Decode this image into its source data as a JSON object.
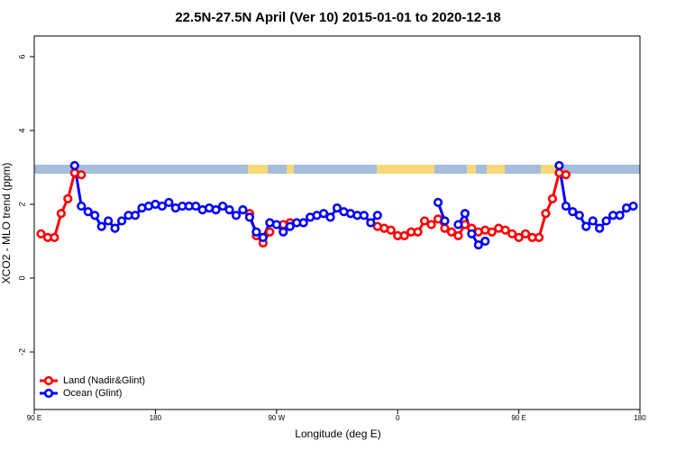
{
  "chart_data": {
    "type": "line",
    "title": "22.5N-27.5N April (Ver 10)   2015-01-01 to 2020-12-18",
    "x_label": "Longitude (deg E)",
    "y_label": "XCO2 - MLO trend (ppm)",
    "x": [
      95,
      100,
      105,
      110,
      115,
      120,
      125,
      130,
      135,
      140,
      145,
      150,
      155,
      160,
      165,
      170,
      175,
      180,
      185,
      190,
      195,
      200,
      205,
      210,
      215,
      220,
      225,
      230,
      235,
      240,
      245,
      250,
      255,
      260,
      265,
      270,
      275,
      280,
      285,
      290,
      295,
      300,
      305,
      310,
      315,
      320,
      325,
      330,
      335,
      340,
      345,
      350,
      355,
      360,
      365,
      370,
      375,
      380,
      385,
      390,
      395,
      400,
      405,
      410,
      415,
      420,
      425,
      430,
      435,
      440,
      445,
      450,
      455,
      460,
      465,
      470,
      475,
      480,
      485,
      490,
      495,
      500,
      505,
      510,
      515,
      520,
      525,
      530,
      535
    ],
    "series": [
      {
        "name": "Land (Nadir&Glint)",
        "color": "#ff0000",
        "values": [
          1.2,
          1.1,
          1.1,
          1.75,
          2.15,
          2.85,
          2.8,
          null,
          null,
          null,
          null,
          null,
          null,
          null,
          null,
          null,
          null,
          null,
          null,
          null,
          null,
          null,
          null,
          null,
          null,
          null,
          null,
          null,
          null,
          null,
          null,
          1.75,
          1.15,
          0.95,
          1.25,
          null,
          1.45,
          1.5,
          null,
          null,
          null,
          null,
          null,
          null,
          null,
          null,
          null,
          null,
          null,
          null,
          1.4,
          1.35,
          1.3,
          1.15,
          1.15,
          1.25,
          1.25,
          1.55,
          1.45,
          1.6,
          1.35,
          1.25,
          1.15,
          1.45,
          1.35,
          1.25,
          1.3,
          1.25,
          1.35,
          1.3,
          1.2,
          1.1,
          1.2,
          1.1,
          1.1,
          1.75,
          2.15,
          2.85,
          2.8,
          null,
          null,
          null,
          null,
          null,
          null,
          null,
          null,
          null,
          null
        ]
      },
      {
        "name": "Ocean (Glint)",
        "color": "#0000ff",
        "values": [
          null,
          null,
          null,
          null,
          null,
          3.05,
          1.95,
          1.8,
          1.7,
          1.4,
          1.55,
          1.35,
          1.55,
          1.7,
          1.7,
          1.9,
          1.95,
          2.0,
          1.95,
          2.05,
          1.9,
          1.95,
          1.95,
          1.95,
          1.85,
          1.9,
          1.85,
          1.95,
          1.85,
          1.7,
          1.85,
          1.65,
          1.25,
          1.1,
          1.5,
          1.45,
          1.25,
          1.4,
          1.5,
          1.5,
          1.65,
          1.7,
          1.75,
          1.65,
          1.9,
          1.8,
          1.75,
          1.7,
          1.7,
          1.5,
          1.7,
          null,
          null,
          null,
          null,
          null,
          null,
          null,
          null,
          2.05,
          1.55,
          null,
          1.45,
          1.75,
          1.2,
          0.9,
          1.0,
          null,
          null,
          null,
          null,
          null,
          null,
          null,
          null,
          null,
          null,
          3.05,
          1.95,
          1.8,
          1.7,
          1.4,
          1.55,
          1.35,
          1.55,
          1.7,
          1.7,
          1.9,
          1.95
        ]
      }
    ],
    "xlim": [
      90,
      540
    ],
    "xticks": [
      {
        "value": 90,
        "label": "90 E"
      },
      180,
      {
        "value": 270,
        "label": "90 W"
      },
      {
        "value": 360,
        "label": "0"
      },
      {
        "value": 450,
        "label": "90 E"
      },
      {
        "value": 540,
        "label": "180"
      }
    ],
    "ylim": [
      -3.56,
      6.56
    ],
    "yticks": [
      -2,
      0,
      2,
      4,
      6
    ],
    "legend": "bottom-left"
  }
}
